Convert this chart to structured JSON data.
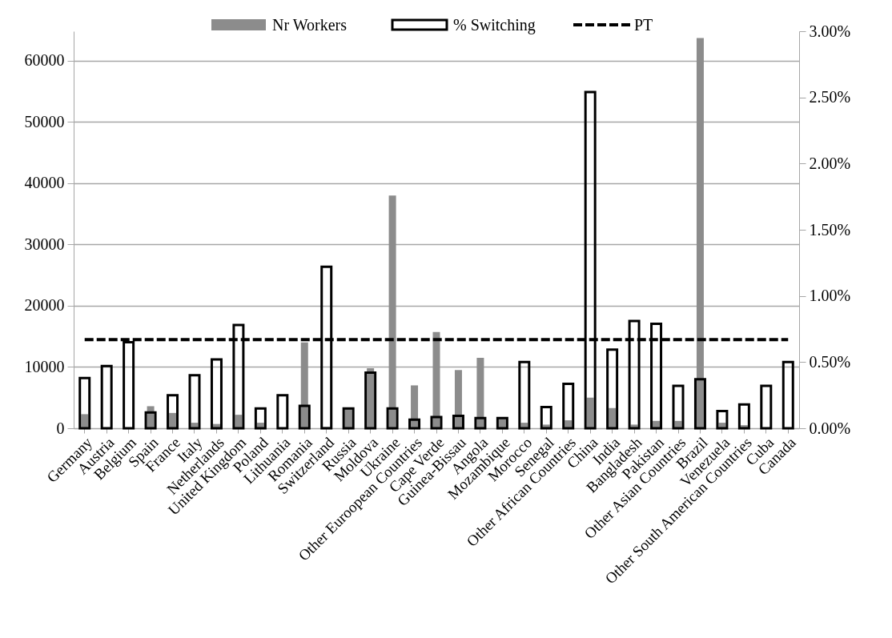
{
  "chart_data": {
    "type": "bar",
    "categories": [
      "Germany",
      "Austria",
      "Belgium",
      "Spain",
      "France",
      "Italy",
      "Netherlands",
      "United Kingdom",
      "Poland",
      "Lithuania",
      "Romania",
      "Switzerland",
      "Russia",
      "Moldova",
      "Ukraine",
      "Other Euroopean Countries",
      "Cape Verde",
      "Guinea-Bissau",
      "Angola",
      "Mozambique",
      "Morocco",
      "Senegal",
      "Other African Countries",
      "China",
      "India",
      "Bangladesh",
      "Pakistan",
      "Other Asian Countries",
      "Brazil",
      "Venezuela",
      "Other South American Countries",
      "Cuba",
      "Canada"
    ],
    "series": [
      {
        "name": "Nr Workers",
        "color": "#8c8c8c",
        "values": [
          2300,
          0,
          0,
          3600,
          2500,
          900,
          700,
          2200,
          900,
          null,
          14000,
          200,
          3300,
          9800,
          38000,
          7000,
          15700,
          9500,
          11500,
          1600,
          900,
          600,
          1300,
          5000,
          3300,
          600,
          1200,
          1200,
          63700,
          900,
          500,
          0,
          0
        ]
      },
      {
        "name": "% Switching",
        "axis": "y2",
        "color": "#000000",
        "values": [
          0.38,
          0.47,
          0.65,
          0.12,
          0.25,
          0.4,
          0.52,
          0.78,
          0.15,
          0.25,
          0.17,
          1.22,
          0.15,
          0.42,
          0.15,
          0.065,
          0.085,
          0.093,
          0.077,
          0.077,
          0.5,
          0.16,
          0.335,
          2.54,
          0.595,
          0.81,
          0.79,
          0.32,
          0.37,
          0.13,
          0.18,
          0.32,
          0.5
        ]
      },
      {
        "name": "PT",
        "type": "line",
        "axis": "y2",
        "color": "#000000",
        "line_style": "dashed",
        "values": [
          0.67,
          0.67,
          0.67,
          0.67,
          0.67,
          0.67,
          0.67,
          0.67,
          0.67,
          0.67,
          0.67,
          0.67,
          0.67,
          0.67,
          0.67,
          0.67,
          0.67,
          0.67,
          0.67,
          0.67,
          0.67,
          0.67,
          0.67,
          0.67,
          0.67,
          0.67,
          0.67,
          0.67,
          0.67,
          0.67,
          0.67,
          0.67,
          0.67
        ]
      }
    ],
    "ylim": [
      0,
      64800
    ],
    "yticks": [
      0,
      10000,
      20000,
      30000,
      40000,
      50000,
      60000
    ],
    "y2lim": [
      0,
      3
    ],
    "y2ticks": [
      {
        "value": 0,
        "label": "0.00%"
      },
      {
        "value": 0.5,
        "label": "0.50%"
      },
      {
        "value": 1,
        "label": "1.00%"
      },
      {
        "value": 1.5,
        "label": "1.50%"
      },
      {
        "value": 2,
        "label": "2.00%"
      },
      {
        "value": 2.5,
        "label": "2.50%"
      },
      {
        "value": 3,
        "label": "3.00%"
      }
    ],
    "grid": "y",
    "legend": "top"
  }
}
